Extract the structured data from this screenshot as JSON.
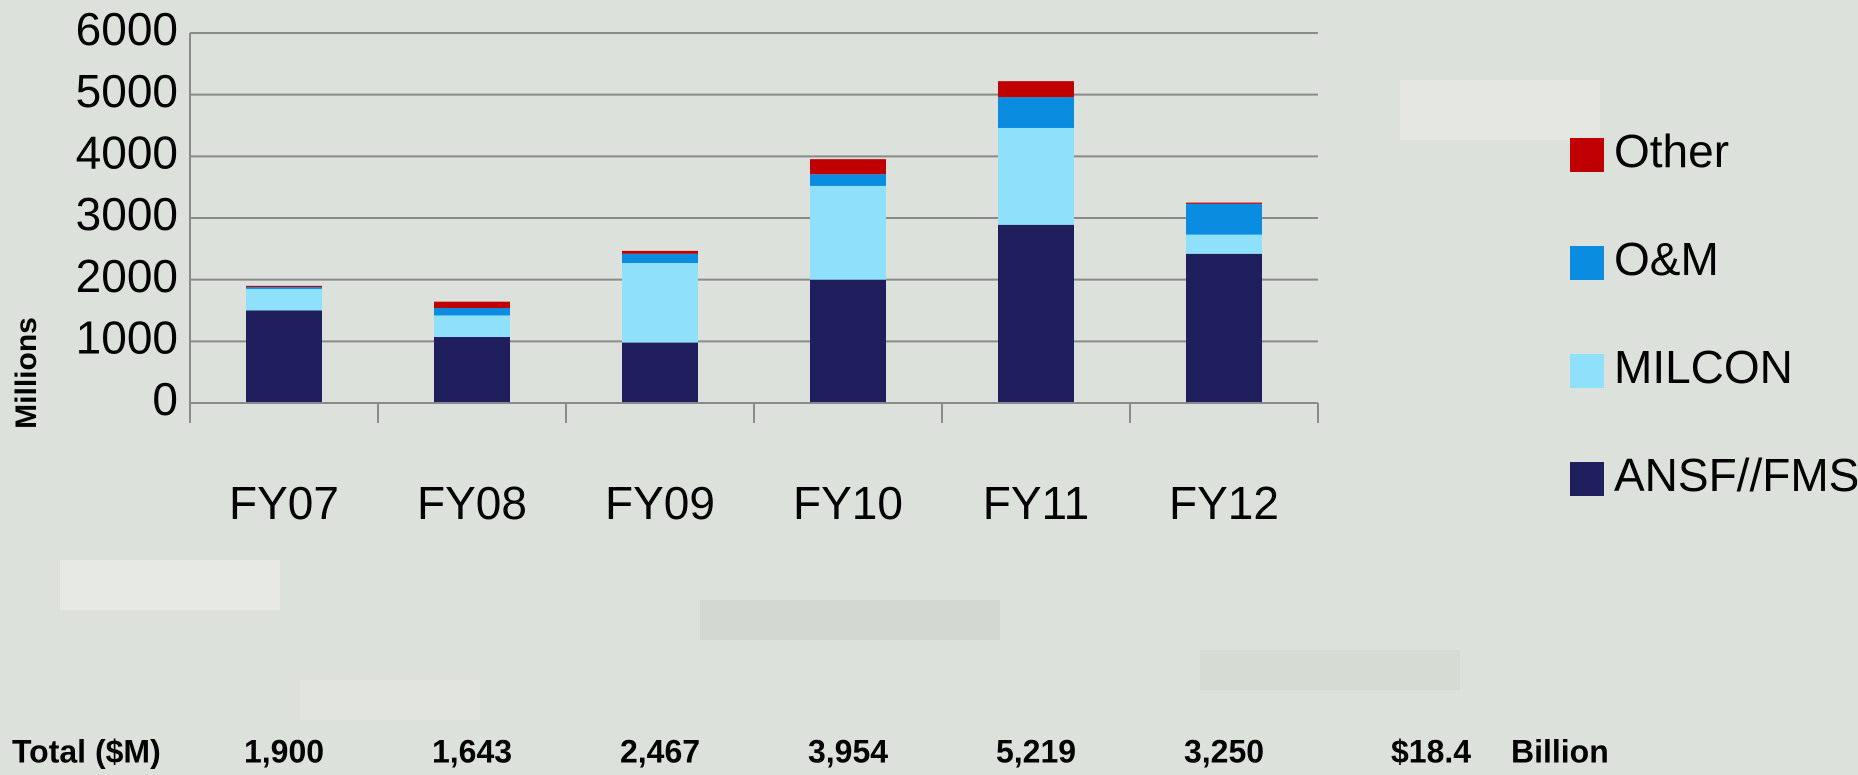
{
  "chart_data": {
    "type": "stacked_bar",
    "categories": [
      "FY07",
      "FY08",
      "FY09",
      "FY10",
      "FY11",
      "FY12"
    ],
    "series": [
      {
        "name": "ANSF//FMS",
        "color": "#1f1f5e",
        "values": [
          1500,
          1070,
          980,
          2000,
          2890,
          2420
        ]
      },
      {
        "name": "MILCON",
        "color": "#8fe0fa",
        "values": [
          350,
          350,
          1290,
          1520,
          1570,
          310
        ]
      },
      {
        "name": "O&M",
        "color": "#0a8de0",
        "values": [
          30,
          120,
          150,
          190,
          500,
          500
        ]
      },
      {
        "name": "Other",
        "color": "#c00000",
        "values": [
          20,
          103,
          47,
          244,
          259,
          20
        ]
      }
    ],
    "y_label": "Millions",
    "ylim": [
      0,
      6000
    ],
    "yticks": [
      0,
      1000,
      2000,
      3000,
      4000,
      5000,
      6000
    ],
    "grid": true,
    "legend": "right",
    "totals": {
      "label": "Total ($M)",
      "values": [
        "1,900",
        "1,643",
        "2,467",
        "3,954",
        "5,219",
        "3,250"
      ],
      "grand_total": "$18.4",
      "unit": "Billion"
    }
  }
}
